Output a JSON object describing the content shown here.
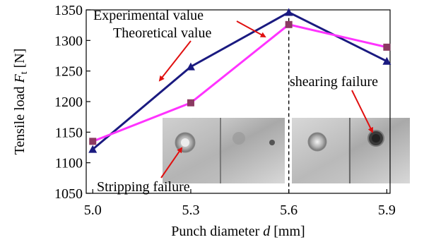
{
  "chart_data": {
    "type": "line",
    "x": [
      5.0,
      5.3,
      5.6,
      5.9
    ],
    "x_tick_labels": [
      "5.0",
      "5.3",
      "5.6",
      "5.9"
    ],
    "xlim": [
      4.98,
      5.91
    ],
    "ylim": [
      1050,
      1350
    ],
    "y_ticks": [
      1050,
      1100,
      1150,
      1200,
      1250,
      1300,
      1350
    ],
    "y_tick_labels": [
      "1050",
      "1100",
      "1150",
      "1200",
      "1250",
      "1300",
      "1350"
    ],
    "xlabel_prefix": "Punch diameter ",
    "xlabel_var": "d",
    "xlabel_suffix": " [mm]",
    "ylabel_prefix": "Tensile load ",
    "ylabel_var": "F",
    "ylabel_sub": "t",
    "ylabel_suffix": " [N]",
    "series": [
      {
        "name": "Experimental value",
        "color": "#1a1a80",
        "marker": "triangle",
        "values": [
          1122,
          1257,
          1346,
          1266
        ]
      },
      {
        "name": "Theoretical value",
        "color": "#ff33ff",
        "marker": "square",
        "values": [
          1135,
          1198,
          1326,
          1289
        ]
      }
    ],
    "annotations": {
      "stripping": "Stripping failure",
      "shearing": "shearing failure"
    },
    "arrow_color": "#e01010",
    "divider_x": 5.6
  }
}
